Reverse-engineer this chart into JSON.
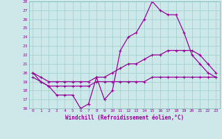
{
  "xlabel": "Windchill (Refroidissement éolien,°C)",
  "bg_color": "#cce8e8",
  "line_color": "#990099",
  "x_hours": [
    0,
    1,
    2,
    3,
    4,
    5,
    6,
    7,
    8,
    9,
    10,
    11,
    12,
    13,
    14,
    15,
    16,
    17,
    18,
    19,
    20,
    21,
    22,
    23
  ],
  "line1": [
    20.0,
    19.0,
    18.5,
    17.5,
    17.5,
    17.5,
    16.0,
    16.5,
    19.5,
    17.0,
    18.0,
    22.5,
    24.0,
    24.5,
    26.0,
    28.0,
    27.0,
    26.5,
    26.5,
    24.5,
    22.0,
    21.0,
    20.0,
    19.5
  ],
  "line2": [
    20.0,
    19.5,
    19.0,
    19.0,
    19.0,
    19.0,
    19.0,
    19.0,
    19.5,
    19.5,
    20.0,
    20.5,
    21.0,
    21.0,
    21.5,
    22.0,
    22.0,
    22.5,
    22.5,
    22.5,
    22.5,
    22.0,
    21.0,
    20.0
  ],
  "line3": [
    19.5,
    19.0,
    18.5,
    18.5,
    18.5,
    18.5,
    18.5,
    18.5,
    19.0,
    19.0,
    19.0,
    19.0,
    19.0,
    19.0,
    19.0,
    19.5,
    19.5,
    19.5,
    19.5,
    19.5,
    19.5,
    19.5,
    19.5,
    19.5
  ],
  "ylim": [
    16,
    28
  ],
  "xlim": [
    -0.5,
    23.5
  ],
  "yticks": [
    16,
    17,
    18,
    19,
    20,
    21,
    22,
    23,
    24,
    25,
    26,
    27,
    28
  ],
  "xticks": [
    0,
    1,
    2,
    3,
    4,
    5,
    6,
    7,
    8,
    9,
    10,
    11,
    12,
    13,
    14,
    15,
    16,
    17,
    18,
    19,
    20,
    21,
    22,
    23
  ]
}
